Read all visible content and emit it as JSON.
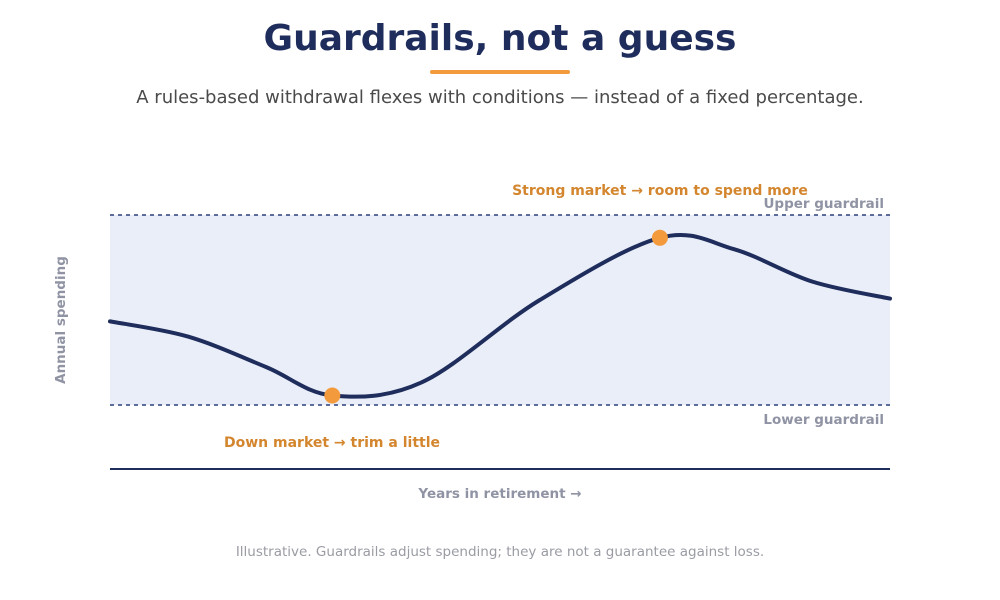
{
  "header": {
    "title": "Guardrails, not a guess",
    "subtitle": "A rules-based withdrawal flexes with conditions — instead of a fixed percentage."
  },
  "footer": {
    "note": "Illustrative. Guardrails adjust spending; they are not a guarantee against loss."
  },
  "colors": {
    "title": "#1f2d5c",
    "accent": "#f39a3d",
    "line": "#1f2d5c",
    "band": "#eaeef8",
    "guardrail": "#2b3f7a",
    "label_gray": "#8f93a3",
    "annotation": "#d4862f"
  },
  "chart_data": {
    "type": "line",
    "xlabel": "Years in retirement →",
    "ylabel": "Annual spending",
    "xlim": [
      0,
      100
    ],
    "ylim": [
      0,
      100
    ],
    "grid": false,
    "guardrails": {
      "upper": {
        "label": "Upper guardrail",
        "value": 100
      },
      "lower": {
        "label": "Lower guardrail",
        "value": 0
      }
    },
    "series": [
      {
        "x": [
          0,
          10,
          20,
          28.5,
          40,
          55,
          70.5,
          80,
          90,
          100
        ],
        "y": [
          44,
          36,
          20,
          5,
          12,
          55,
          88,
          82,
          65,
          56
        ]
      }
    ],
    "annotations": [
      {
        "text": "Strong market → room to spend more",
        "x": 70.5,
        "y": 88
      },
      {
        "text": "Down market → trim a little",
        "x": 28.5,
        "y": 5
      }
    ]
  }
}
